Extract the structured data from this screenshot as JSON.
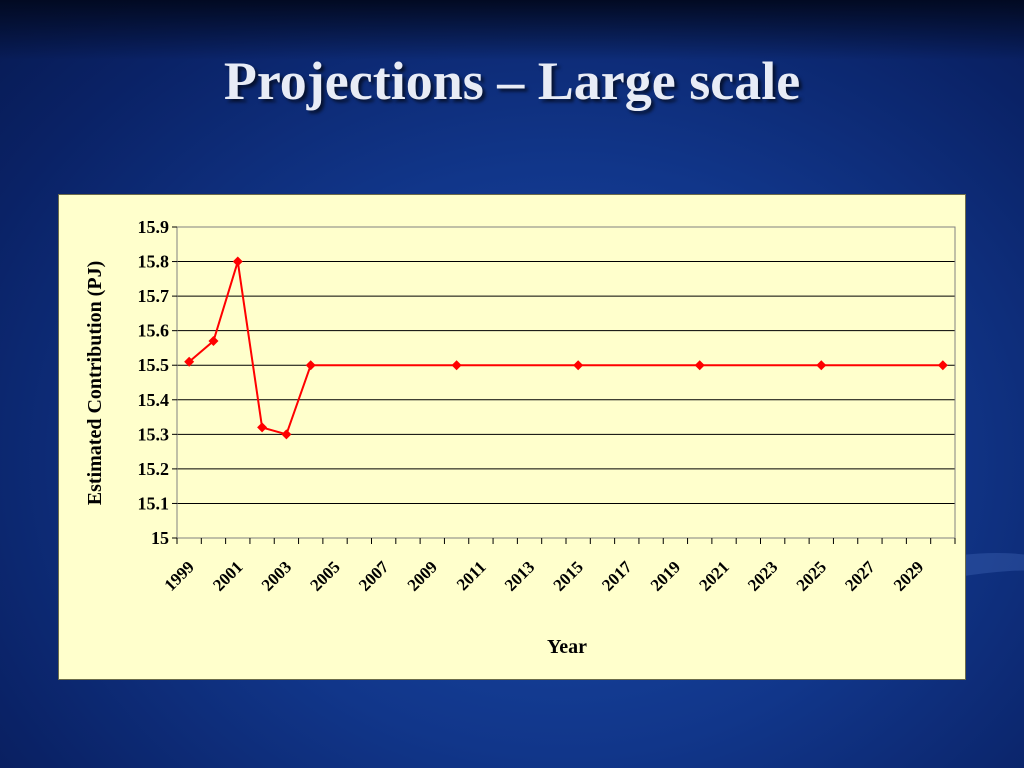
{
  "slide": {
    "title": "Projections – Large scale",
    "background_color": "#11368a",
    "chart_background": "#ffffcc"
  },
  "chart_data": {
    "type": "line",
    "title": "",
    "xlabel": "Year",
    "ylabel": "Estimated Contribution (PJ)",
    "ylim": [
      15,
      15.9
    ],
    "xlim": [
      1999,
      2030
    ],
    "yticks": [
      "15",
      "15.1",
      "15.2",
      "15.3",
      "15.4",
      "15.5",
      "15.6",
      "15.7",
      "15.8",
      "15.9"
    ],
    "xtick_labels": [
      "1999",
      "2001",
      "2003",
      "2005",
      "2007",
      "2009",
      "2011",
      "2013",
      "2015",
      "2017",
      "2019",
      "2021",
      "2023",
      "2025",
      "2027",
      "2029"
    ],
    "grid": "horizontal",
    "legend": "none",
    "series": [
      {
        "color": "#ff0000",
        "marker": "diamond",
        "x": [
          1999,
          2000,
          2001,
          2002,
          2003,
          2004,
          2010,
          2015,
          2020,
          2025,
          2030
        ],
        "y": [
          15.51,
          15.57,
          15.8,
          15.32,
          15.3,
          15.5,
          15.5,
          15.5,
          15.5,
          15.5,
          15.5
        ]
      }
    ]
  }
}
